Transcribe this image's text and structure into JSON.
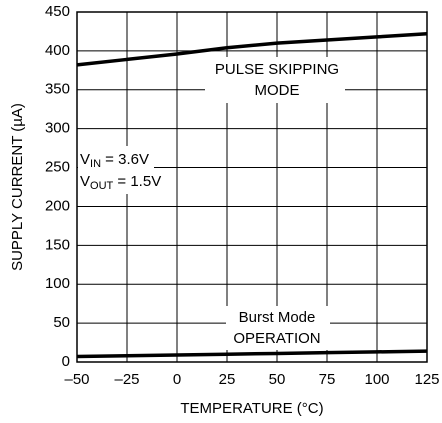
{
  "chart_data": {
    "type": "line",
    "x_label": "TEMPERATURE (°C)",
    "y_label": "SUPPLY CURRENT (µA)",
    "x": [
      -50,
      -25,
      0,
      25,
      50,
      75,
      100,
      125
    ],
    "series": [
      {
        "name": "PULSE SKIPPING MODE",
        "color": "#000000",
        "values": [
          382,
          389,
          396,
          404,
          410,
          414,
          418,
          422
        ]
      },
      {
        "name": "Burst Mode OPERATION",
        "color": "#000000",
        "values": [
          7,
          8,
          9,
          10,
          11,
          12,
          13,
          14
        ]
      }
    ],
    "xlim": [
      -50,
      125
    ],
    "xticks": [
      {
        "value": -50,
        "label": "–50"
      },
      {
        "value": -25,
        "label": "–25"
      },
      0,
      25,
      50,
      75,
      100,
      125
    ],
    "ylim": [
      0,
      450
    ],
    "yticks": [
      0,
      50,
      100,
      150,
      200,
      250,
      300,
      350,
      400,
      450
    ],
    "grid": true,
    "annotations": [
      {
        "lines": [
          "PULSE SKIPPING",
          "MODE"
        ]
      },
      {
        "lines": [
          "Burst Mode",
          "OPERATION"
        ]
      },
      {
        "conditions": [
          {
            "base": "V",
            "sub": "IN",
            "rest": " = 3.6V"
          },
          {
            "base": "V",
            "sub": "OUT",
            "rest": " = 1.5V"
          }
        ]
      }
    ]
  }
}
